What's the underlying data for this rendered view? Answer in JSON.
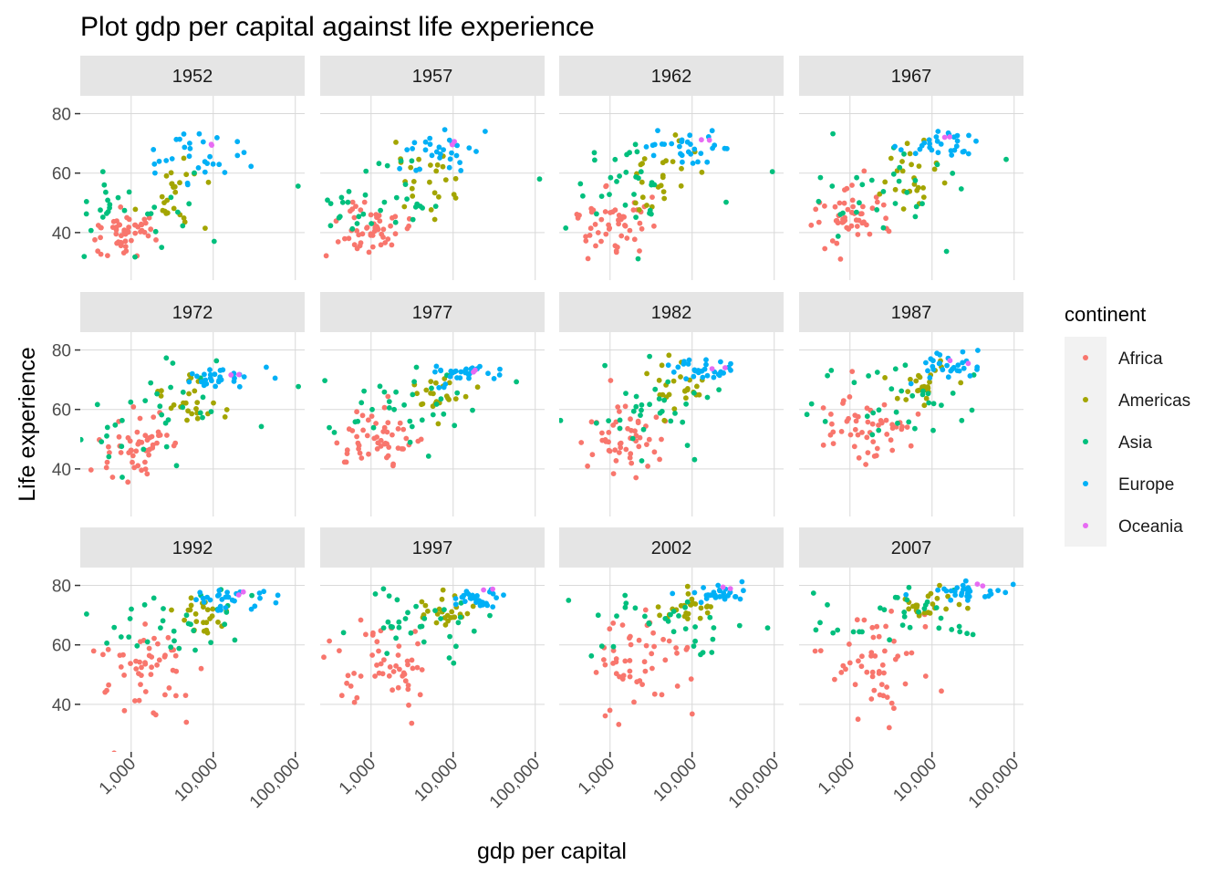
{
  "chart_data": {
    "type": "scatter",
    "title": "Plot gdp per capital against life experience",
    "xlabel": "gdp per capital",
    "ylabel": "Life experience",
    "x_scale": "log10",
    "x_ticks": [
      1000,
      10000,
      100000
    ],
    "x_tick_labels": [
      "1,000",
      "10,000",
      "100,000"
    ],
    "xlim": [
      240,
      130000
    ],
    "y_ticks": [
      40,
      60,
      80
    ],
    "y_tick_labels": [
      "40",
      "60",
      "80"
    ],
    "ylim": [
      24,
      86
    ],
    "grid": true,
    "facet_by": "year",
    "facets": [
      "1952",
      "1957",
      "1962",
      "1967",
      "1972",
      "1977",
      "1982",
      "1987",
      "1992",
      "1997",
      "2002",
      "2007"
    ],
    "legend": {
      "title": "continent",
      "position": "right",
      "items": [
        {
          "name": "Africa",
          "color": "#F8766D"
        },
        {
          "name": "Americas",
          "color": "#A3A500"
        },
        {
          "name": "Asia",
          "color": "#00BF7D"
        },
        {
          "name": "Europe",
          "color": "#00B0F6"
        },
        {
          "name": "Oceania",
          "color": "#E76BF3"
        }
      ]
    },
    "series": [
      {
        "name": "Africa",
        "centers": [
          [
            850,
            40,
            0.2,
            4.5
          ],
          [
            950,
            42,
            0.2,
            5
          ],
          [
            1050,
            44,
            0.22,
            5
          ],
          [
            1150,
            46,
            0.22,
            5
          ],
          [
            1250,
            48,
            0.24,
            5
          ],
          [
            1350,
            50,
            0.25,
            5.5
          ],
          [
            1450,
            51,
            0.26,
            6
          ],
          [
            1550,
            52,
            0.27,
            6.5
          ],
          [
            1600,
            52,
            0.3,
            7
          ],
          [
            1700,
            53,
            0.3,
            7.5
          ],
          [
            1800,
            52,
            0.33,
            8
          ],
          [
            2000,
            54,
            0.35,
            8
          ]
        ]
      },
      {
        "name": "Americas",
        "centers": [
          [
            3200,
            53,
            0.22,
            7
          ],
          [
            3800,
            56,
            0.22,
            6.5
          ],
          [
            4300,
            58,
            0.2,
            6
          ],
          [
            4800,
            60,
            0.2,
            5.5
          ],
          [
            5500,
            63,
            0.2,
            5
          ],
          [
            6200,
            65,
            0.18,
            4.5
          ],
          [
            6800,
            67,
            0.18,
            4
          ],
          [
            7200,
            68,
            0.18,
            3.5
          ],
          [
            7500,
            70,
            0.18,
            3
          ],
          [
            8000,
            71,
            0.18,
            3
          ],
          [
            8500,
            72,
            0.18,
            2.5
          ],
          [
            9500,
            73,
            0.18,
            2.5
          ]
        ]
      },
      {
        "name": "Asia",
        "centers": [
          [
            1000,
            46,
            0.4,
            9
          ],
          [
            1100,
            49,
            0.42,
            9
          ],
          [
            1300,
            52,
            0.44,
            9.5
          ],
          [
            1500,
            55,
            0.46,
            9.5
          ],
          [
            1900,
            58,
            0.48,
            9
          ],
          [
            2300,
            61,
            0.5,
            8.5
          ],
          [
            2700,
            63,
            0.5,
            8
          ],
          [
            3200,
            65,
            0.5,
            7
          ],
          [
            3500,
            66,
            0.5,
            6.5
          ],
          [
            4000,
            68,
            0.5,
            6
          ],
          [
            4700,
            69,
            0.5,
            5.5
          ],
          [
            5500,
            70,
            0.5,
            5
          ]
        ]
      },
      {
        "name": "Europe",
        "centers": [
          [
            5500,
            65,
            0.3,
            4
          ],
          [
            6500,
            67,
            0.28,
            3.5
          ],
          [
            7500,
            69,
            0.26,
            3
          ],
          [
            9000,
            70,
            0.25,
            2.5
          ],
          [
            11000,
            71,
            0.24,
            2
          ],
          [
            13000,
            72,
            0.22,
            2
          ],
          [
            14500,
            73,
            0.22,
            2
          ],
          [
            16000,
            74,
            0.22,
            2
          ],
          [
            17500,
            75,
            0.22,
            1.8
          ],
          [
            19000,
            76,
            0.2,
            1.8
          ],
          [
            21000,
            77,
            0.2,
            1.7
          ],
          [
            24000,
            78,
            0.2,
            1.6
          ]
        ]
      },
      {
        "name": "Oceania",
        "centers": [
          [
            10500,
            69.5,
            0.05,
            0.5
          ],
          [
            11500,
            70.5,
            0.05,
            0.5
          ],
          [
            13000,
            71,
            0.05,
            0.5
          ],
          [
            15500,
            71.5,
            0.05,
            0.5
          ],
          [
            17500,
            72,
            0.05,
            0.5
          ],
          [
            19000,
            73,
            0.05,
            0.5
          ],
          [
            20000,
            74.5,
            0.05,
            0.5
          ],
          [
            21500,
            75.5,
            0.05,
            0.5
          ],
          [
            23000,
            77,
            0.05,
            0.5
          ],
          [
            26000,
            78.5,
            0.05,
            0.5
          ],
          [
            28000,
            79.5,
            0.05,
            0.5
          ],
          [
            32000,
            80.5,
            0.05,
            0.5
          ]
        ]
      }
    ],
    "counts": {
      "Africa": 52,
      "Americas": 25,
      "Asia": 33,
      "Europe": 30,
      "Oceania": 2
    },
    "outliers": [
      {
        "facet": "1952",
        "x": 108000,
        "y": 55.6,
        "series": "Asia"
      },
      {
        "facet": "1957",
        "x": 113000,
        "y": 58.0,
        "series": "Asia"
      },
      {
        "facet": "1962",
        "x": 95000,
        "y": 60.5,
        "series": "Asia"
      },
      {
        "facet": "1967",
        "x": 80000,
        "y": 64.6,
        "series": "Asia"
      },
      {
        "facet": "1972",
        "x": 109000,
        "y": 67.7,
        "series": "Asia"
      },
      {
        "facet": "1977",
        "x": 59000,
        "y": 69.3,
        "series": "Asia"
      },
      {
        "facet": "1992",
        "x": 620,
        "y": 23.6,
        "series": "Africa"
      }
    ]
  }
}
